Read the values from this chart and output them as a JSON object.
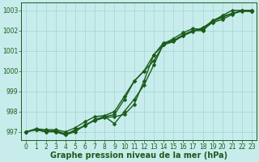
{
  "xlabel": "Graphe pression niveau de la mer (hPa)",
  "ylim": [
    996.6,
    1003.4
  ],
  "xlim": [
    -0.5,
    23.5
  ],
  "yticks": [
    997,
    998,
    999,
    1000,
    1001,
    1002,
    1003
  ],
  "xticks": [
    0,
    1,
    2,
    3,
    4,
    5,
    6,
    7,
    8,
    9,
    10,
    11,
    12,
    13,
    14,
    15,
    16,
    17,
    18,
    19,
    20,
    21,
    22,
    23
  ],
  "bg_color": "#c8ecec",
  "grid_color": "#a0d4d4",
  "line_color": "#1a5c1a",
  "series": [
    [
      997.0,
      997.1,
      997.0,
      997.0,
      996.85,
      997.1,
      997.3,
      997.6,
      997.75,
      997.85,
      998.6,
      999.5,
      1000.0,
      1000.5,
      1001.3,
      1001.5,
      1001.75,
      1002.0,
      1002.1,
      1002.5,
      1002.7,
      1002.85,
      1003.0,
      1002.95
    ],
    [
      997.0,
      997.1,
      997.0,
      997.05,
      996.9,
      997.05,
      997.3,
      997.6,
      997.75,
      997.4,
      998.0,
      998.6,
      999.3,
      1000.3,
      1001.35,
      1001.6,
      1001.9,
      1002.1,
      1002.05,
      1002.4,
      1002.55,
      1002.8,
      1003.0,
      1003.0
    ],
    [
      997.0,
      997.1,
      997.05,
      997.0,
      996.85,
      997.0,
      997.35,
      997.55,
      997.7,
      997.75,
      997.85,
      998.35,
      999.5,
      1000.8,
      1001.3,
      1001.45,
      1001.75,
      1001.95,
      1002.15,
      1002.45,
      1002.65,
      1002.85,
      1002.95,
      1002.95
    ],
    [
      997.0,
      997.15,
      997.1,
      997.1,
      997.0,
      997.2,
      997.5,
      997.75,
      997.8,
      998.0,
      998.75,
      999.5,
      1000.0,
      1000.8,
      1001.4,
      1001.5,
      1001.8,
      1002.0,
      1002.0,
      1002.45,
      1002.75,
      1003.0,
      1003.0,
      1003.0
    ]
  ],
  "marker": "D",
  "marker_size": 2.5,
  "line_width": 1.0,
  "font_color": "#1a5c1a",
  "tick_fontsize": 5.5,
  "xlabel_fontsize": 7.0,
  "ylabel_fontsize": 6.0,
  "ytick_labels": [
    "997",
    "998",
    "999",
    "1000",
    "1001",
    "1002",
    "1003"
  ]
}
